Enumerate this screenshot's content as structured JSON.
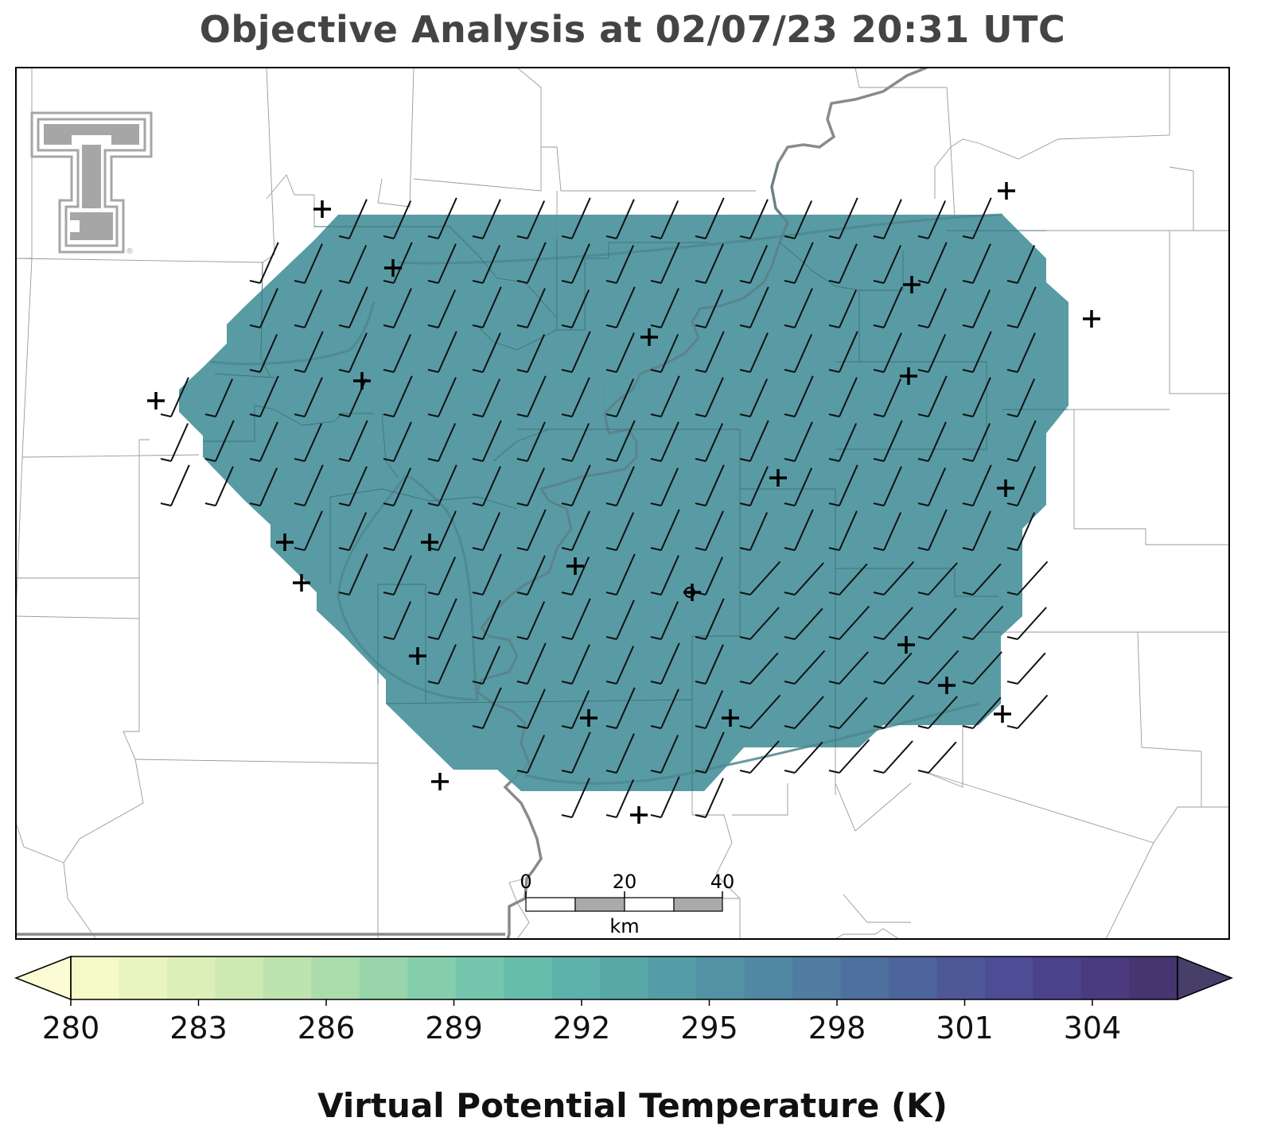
{
  "title": "Objective Analysis at 02/07/23 20:31 UTC",
  "logo": {
    "icon": "texas-tech-double-t-logo",
    "mark": "®",
    "color": "#a6a6a6"
  },
  "scale_bar": {
    "ticks": [
      "0",
      "20",
      "40"
    ],
    "unit": "km"
  },
  "colorbar": {
    "label": "Virtual Potential Temperature (K)",
    "ticks": [
      "280",
      "283",
      "286",
      "289",
      "292",
      "295",
      "298",
      "301",
      "304"
    ],
    "min": 280,
    "max": 306,
    "extend": "both",
    "colors": [
      "#f6f9c8",
      "#e9f4be",
      "#dcefb8",
      "#cdeab3",
      "#bde3ae",
      "#abdcab",
      "#98d5ab",
      "#85ceac",
      "#74c6ad",
      "#66bdac",
      "#5db3ab",
      "#58a8a8",
      "#559da6",
      "#5292a4",
      "#5087a2",
      "#4f7ca0",
      "#4e709e",
      "#4e649c",
      "#4e5899",
      "#4d4c95",
      "#4c428c",
      "#4a3b80",
      "#473571"
    ]
  },
  "analysis_field": {
    "value_K": 294.5,
    "color": "#4f969f"
  },
  "wind": {
    "description_color": "#111111"
  }
}
